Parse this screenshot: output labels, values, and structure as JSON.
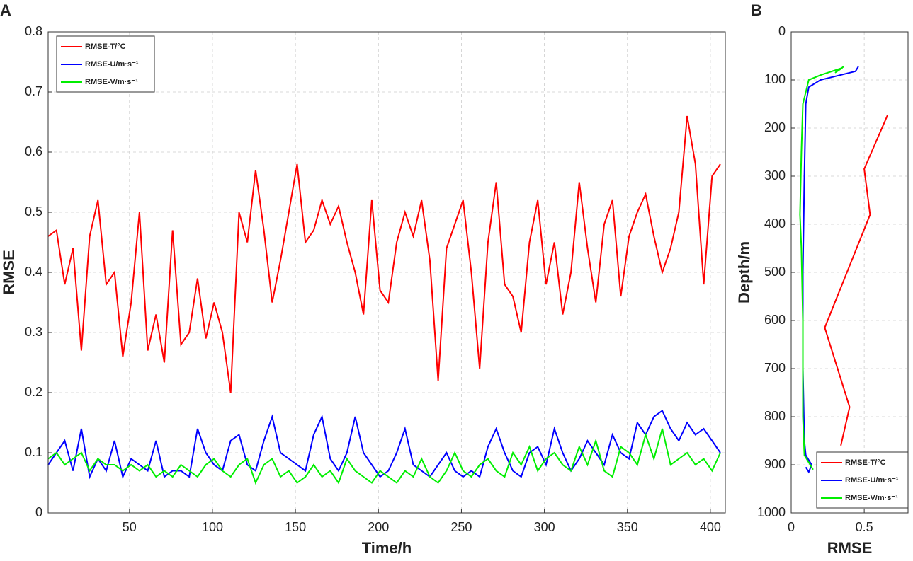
{
  "chart_data": [
    {
      "type": "line",
      "label": "A",
      "ylabel": "RMSE",
      "xlabel": "Time/h",
      "xlim": [
        1,
        409
      ],
      "ylim": [
        0,
        0.8
      ],
      "xticks": [
        50,
        100,
        150,
        200,
        250,
        300,
        350,
        400
      ],
      "yticks": [
        0,
        0.1,
        0.2,
        0.3,
        0.4,
        0.5,
        0.6,
        0.7,
        0.8
      ],
      "grid": true,
      "legend": "upper left",
      "x": [
        1,
        6,
        11,
        16,
        21,
        26,
        31,
        36,
        41,
        46,
        51,
        56,
        61,
        66,
        71,
        76,
        81,
        86,
        91,
        96,
        101,
        106,
        111,
        116,
        121,
        126,
        131,
        136,
        141,
        146,
        151,
        156,
        161,
        166,
        171,
        176,
        181,
        186,
        191,
        196,
        201,
        206,
        211,
        216,
        221,
        226,
        231,
        236,
        241,
        246,
        251,
        256,
        261,
        266,
        271,
        276,
        281,
        286,
        291,
        296,
        301,
        306,
        311,
        316,
        321,
        326,
        331,
        336,
        341,
        346,
        351,
        356,
        361,
        366,
        371,
        376,
        381,
        386,
        391,
        396,
        401,
        406
      ],
      "series": [
        {
          "name": "RMSE-T/°C",
          "color": "#ff0000",
          "values": [
            0.46,
            0.47,
            0.38,
            0.44,
            0.27,
            0.46,
            0.52,
            0.38,
            0.4,
            0.26,
            0.35,
            0.5,
            0.27,
            0.33,
            0.25,
            0.47,
            0.28,
            0.3,
            0.39,
            0.29,
            0.35,
            0.3,
            0.2,
            0.5,
            0.45,
            0.57,
            0.47,
            0.35,
            0.42,
            0.5,
            0.58,
            0.45,
            0.47,
            0.52,
            0.48,
            0.51,
            0.45,
            0.4,
            0.33,
            0.52,
            0.37,
            0.35,
            0.45,
            0.5,
            0.46,
            0.52,
            0.42,
            0.22,
            0.44,
            0.48,
            0.52,
            0.4,
            0.24,
            0.45,
            0.55,
            0.38,
            0.36,
            0.3,
            0.45,
            0.52,
            0.38,
            0.45,
            0.33,
            0.4,
            0.55,
            0.44,
            0.35,
            0.48,
            0.52,
            0.36,
            0.46,
            0.5,
            0.53,
            0.46,
            0.4,
            0.44,
            0.5,
            0.66,
            0.58,
            0.38,
            0.56,
            0.58
          ]
        },
        {
          "name": "RMSE-U/m·s⁻¹",
          "color": "#0000ff",
          "values": [
            0.08,
            0.1,
            0.12,
            0.07,
            0.14,
            0.06,
            0.09,
            0.07,
            0.12,
            0.06,
            0.09,
            0.08,
            0.07,
            0.12,
            0.06,
            0.07,
            0.07,
            0.06,
            0.14,
            0.1,
            0.08,
            0.07,
            0.12,
            0.13,
            0.08,
            0.07,
            0.12,
            0.16,
            0.1,
            0.09,
            0.08,
            0.07,
            0.13,
            0.16,
            0.09,
            0.07,
            0.1,
            0.16,
            0.1,
            0.08,
            0.06,
            0.07,
            0.1,
            0.14,
            0.08,
            0.07,
            0.06,
            0.08,
            0.1,
            0.07,
            0.06,
            0.07,
            0.06,
            0.11,
            0.14,
            0.1,
            0.07,
            0.06,
            0.1,
            0.11,
            0.08,
            0.14,
            0.1,
            0.07,
            0.09,
            0.12,
            0.1,
            0.08,
            0.13,
            0.1,
            0.09,
            0.15,
            0.13,
            0.16,
            0.17,
            0.14,
            0.12,
            0.15,
            0.13,
            0.14,
            0.12,
            0.1
          ]
        },
        {
          "name": "RMSE-V/m·s⁻¹",
          "color": "#00ee00",
          "values": [
            0.09,
            0.1,
            0.08,
            0.09,
            0.1,
            0.07,
            0.09,
            0.08,
            0.08,
            0.07,
            0.08,
            0.07,
            0.08,
            0.06,
            0.07,
            0.06,
            0.08,
            0.07,
            0.06,
            0.08,
            0.09,
            0.07,
            0.06,
            0.08,
            0.09,
            0.05,
            0.08,
            0.09,
            0.06,
            0.07,
            0.05,
            0.06,
            0.08,
            0.06,
            0.07,
            0.05,
            0.09,
            0.07,
            0.06,
            0.05,
            0.07,
            0.06,
            0.05,
            0.07,
            0.06,
            0.09,
            0.06,
            0.05,
            0.07,
            0.1,
            0.07,
            0.06,
            0.08,
            0.09,
            0.07,
            0.06,
            0.1,
            0.08,
            0.11,
            0.07,
            0.09,
            0.1,
            0.08,
            0.07,
            0.11,
            0.08,
            0.12,
            0.07,
            0.06,
            0.11,
            0.1,
            0.08,
            0.13,
            0.09,
            0.14,
            0.08,
            0.09,
            0.1,
            0.08,
            0.09,
            0.07,
            0.1
          ]
        }
      ]
    },
    {
      "type": "profile",
      "label": "B",
      "ylabel": "Depth/m",
      "xlabel": "RMSE",
      "xlim": [
        0,
        0.8
      ],
      "ylim": [
        0,
        1000
      ],
      "y_inverted": true,
      "xticks": [
        0,
        0.5
      ],
      "yticks": [
        0,
        100,
        200,
        300,
        400,
        500,
        600,
        700,
        800,
        900,
        1000
      ],
      "grid": true,
      "legend": "lower right",
      "series": [
        {
          "name": "RMSE-T/°C",
          "color": "#ff0000",
          "x": [
            0.66,
            0.5,
            0.54,
            0.23,
            0.4,
            0.34
          ],
          "values": [
            173,
            285,
            380,
            615,
            780,
            860
          ]
        },
        {
          "name": "RMSE-U/m·s⁻¹",
          "color": "#0000ff",
          "x": [
            0.46,
            0.44,
            0.2,
            0.12,
            0.1,
            0.09,
            0.08,
            0.08,
            0.09,
            0.1,
            0.14,
            0.12,
            0.1
          ],
          "values": [
            72,
            82,
            100,
            115,
            150,
            300,
            500,
            700,
            850,
            880,
            900,
            915,
            905
          ]
        },
        {
          "name": "RMSE-V/m·s⁻¹",
          "color": "#00ee00",
          "x": [
            0.36,
            0.3,
            0.35,
            0.2,
            0.12,
            0.08,
            0.07,
            0.06,
            0.07,
            0.08,
            0.08,
            0.09,
            0.12,
            0.15
          ],
          "values": [
            72,
            85,
            75,
            90,
            100,
            150,
            250,
            380,
            450,
            600,
            800,
            880,
            895,
            910
          ]
        }
      ]
    }
  ]
}
